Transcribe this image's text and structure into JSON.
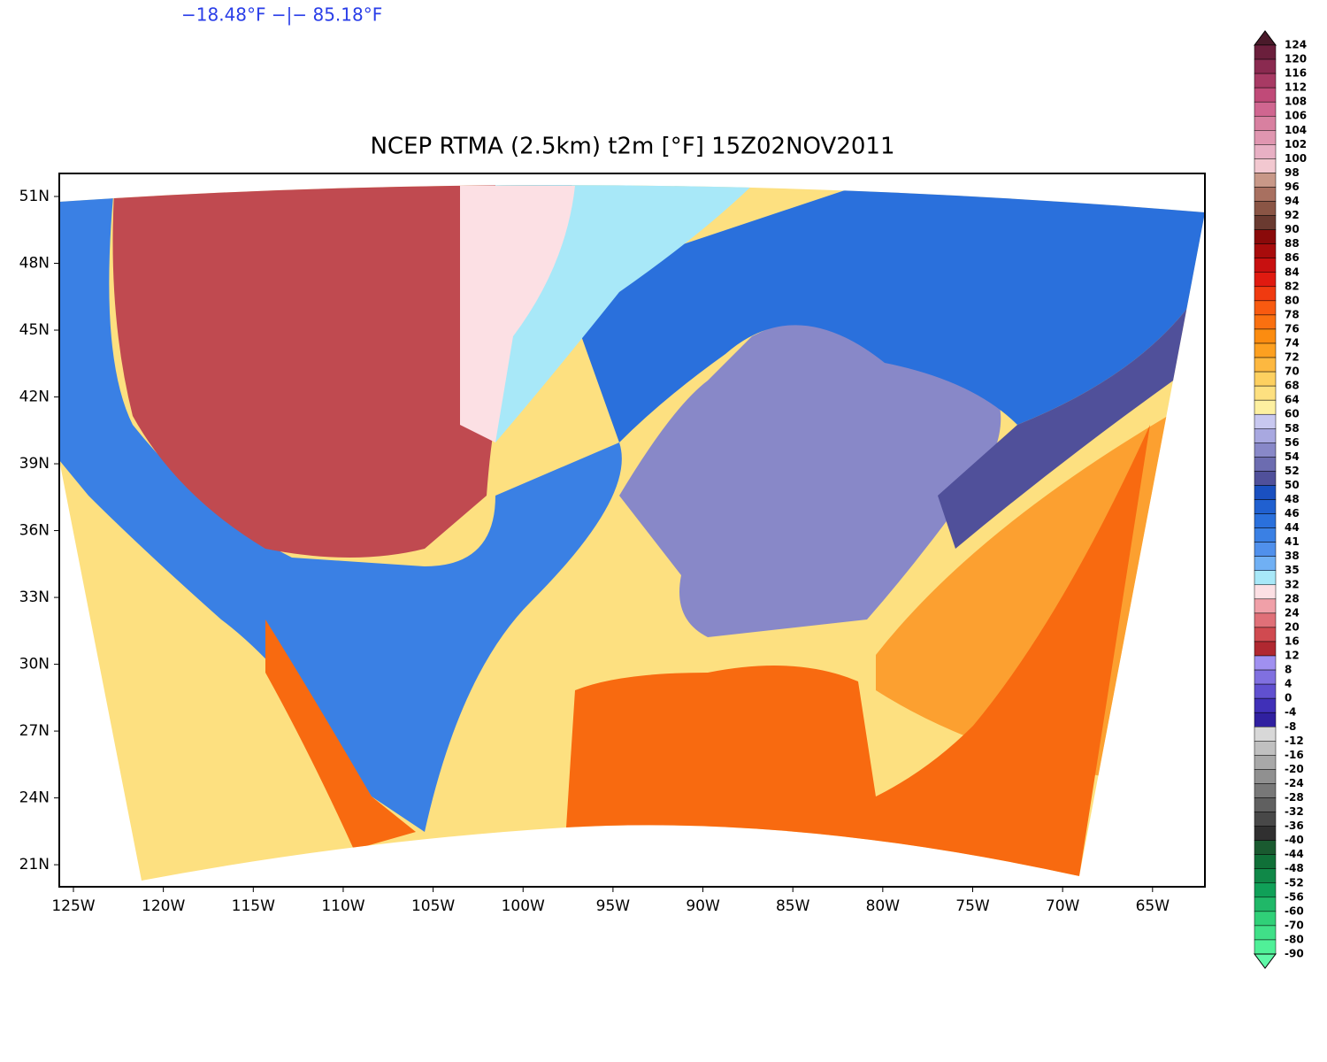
{
  "header": {
    "range_text": "−18.48°F −|− 85.18°F"
  },
  "map": {
    "title": "NCEP RTMA (2.5km) t2m [°F] 15Z02NOV2011",
    "lat_ticks": [
      {
        "value": 51,
        "label": "51N"
      },
      {
        "value": 48,
        "label": "48N"
      },
      {
        "value": 45,
        "label": "45N"
      },
      {
        "value": 42,
        "label": "42N"
      },
      {
        "value": 39,
        "label": "39N"
      },
      {
        "value": 36,
        "label": "36N"
      },
      {
        "value": 33,
        "label": "33N"
      },
      {
        "value": 30,
        "label": "30N"
      },
      {
        "value": 27,
        "label": "27N"
      },
      {
        "value": 24,
        "label": "24N"
      },
      {
        "value": 21,
        "label": "21N"
      }
    ],
    "lon_ticks": [
      {
        "value": -125,
        "label": "125W"
      },
      {
        "value": -120,
        "label": "120W"
      },
      {
        "value": -115,
        "label": "115W"
      },
      {
        "value": -110,
        "label": "110W"
      },
      {
        "value": -105,
        "label": "105W"
      },
      {
        "value": -100,
        "label": "100W"
      },
      {
        "value": -95,
        "label": "95W"
      },
      {
        "value": -90,
        "label": "90W"
      },
      {
        "value": -85,
        "label": "85W"
      },
      {
        "value": -80,
        "label": "80W"
      },
      {
        "value": -75,
        "label": "75W"
      },
      {
        "value": -70,
        "label": "70W"
      },
      {
        "value": -65,
        "label": "65W"
      }
    ]
  },
  "colorbar": {
    "levels": [
      124,
      120,
      116,
      112,
      108,
      106,
      104,
      102,
      100,
      98,
      96,
      94,
      92,
      90,
      88,
      86,
      84,
      82,
      80,
      78,
      76,
      74,
      72,
      70,
      68,
      64,
      60,
      58,
      56,
      54,
      52,
      50,
      48,
      46,
      44,
      41,
      38,
      35,
      32,
      28,
      24,
      20,
      16,
      12,
      8,
      4,
      0,
      -4,
      -8,
      -12,
      -16,
      -20,
      -24,
      -28,
      -32,
      -36,
      -40,
      -44,
      -48,
      -52,
      -56,
      -60,
      -70,
      -80,
      -90
    ],
    "colors": [
      "#4a1a2a",
      "#6b1f3c",
      "#8a2a50",
      "#a83a64",
      "#c04a78",
      "#d06690",
      "#d880a0",
      "#e096b0",
      "#e8b0c4",
      "#f2c8d0",
      "#c89888",
      "#a87060",
      "#8a5545",
      "#6a3a30",
      "#8a0a0a",
      "#a80c0c",
      "#c81010",
      "#e01a10",
      "#f03a10",
      "#f85a10",
      "#fa7010",
      "#fc8c10",
      "#fda020",
      "#fdb840",
      "#fdd060",
      "#fde080",
      "#fdf0a0",
      "#c8c8f0",
      "#a8a8e0",
      "#8888c8",
      "#6c6cb0",
      "#50509a",
      "#1a50c0",
      "#2060d0",
      "#2a70dc",
      "#3a80e4",
      "#5090ec",
      "#70b0f4",
      "#a8e8f8",
      "#fce0e4",
      "#f0a0a8",
      "#e07078",
      "#d04a50",
      "#b02830",
      "#a090f0",
      "#8070e0",
      "#6050d0",
      "#4030b8",
      "#3020a0",
      "#d8d8d8",
      "#c0c0c0",
      "#a8a8a8",
      "#909090",
      "#787878",
      "#606060",
      "#484848",
      "#303030",
      "#1a5a30",
      "#107038",
      "#108848",
      "#10a058",
      "#20b868",
      "#30d078",
      "#40e088",
      "#50f098",
      "#60f8a8"
    ]
  }
}
